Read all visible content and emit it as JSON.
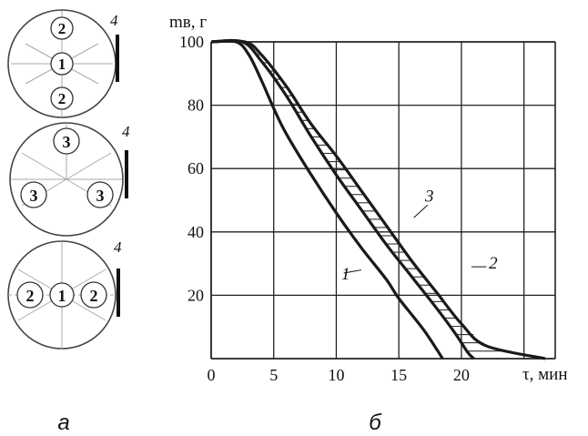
{
  "panel_labels": {
    "left": "а",
    "right": "б"
  },
  "diagrams": [
    {
      "circles": [
        "2",
        "1",
        "2"
      ],
      "marker": "4"
    },
    {
      "circles": [
        "3",
        "3",
        "3"
      ],
      "marker": "4"
    },
    {
      "circles": [
        "2",
        "1",
        "2"
      ],
      "marker": "4"
    }
  ],
  "chart_data": {
    "type": "line",
    "ylabel": "mв, г",
    "xlabel": "τ, мин",
    "x_ticks": [
      "0",
      "5",
      "10",
      "15",
      "20"
    ],
    "y_ticks": [
      "100",
      "80",
      "60",
      "40",
      "20"
    ],
    "xlim": [
      0,
      27.5
    ],
    "ylim": [
      0,
      100
    ],
    "grid": true,
    "series": [
      {
        "name": "1",
        "points": [
          [
            0,
            100
          ],
          [
            2,
            100
          ],
          [
            3,
            96
          ],
          [
            4,
            88
          ],
          [
            5,
            79
          ],
          [
            6,
            71
          ],
          [
            8,
            58
          ],
          [
            10,
            46
          ],
          [
            12,
            35
          ],
          [
            14,
            25
          ],
          [
            15,
            19
          ],
          [
            17,
            9
          ],
          [
            18.5,
            0
          ]
        ]
      },
      {
        "name": "2",
        "points": [
          [
            0,
            100
          ],
          [
            2.7,
            100
          ],
          [
            4,
            96
          ],
          [
            6,
            86
          ],
          [
            8,
            74
          ],
          [
            10,
            64
          ],
          [
            12,
            53
          ],
          [
            14,
            42
          ],
          [
            16,
            31
          ],
          [
            18,
            21
          ],
          [
            20,
            11
          ],
          [
            22,
            4
          ],
          [
            26.7,
            0
          ]
        ]
      },
      {
        "name": "3",
        "points": [
          [
            0,
            100
          ],
          [
            2.5,
            100
          ],
          [
            4,
            94
          ],
          [
            6,
            83
          ],
          [
            8,
            70
          ],
          [
            10,
            58
          ],
          [
            12,
            47
          ],
          [
            14,
            36
          ],
          [
            16,
            26
          ],
          [
            18,
            16
          ],
          [
            19.5,
            8
          ],
          [
            20.5,
            2
          ],
          [
            21,
            0
          ]
        ]
      }
    ],
    "annotations": [
      "1",
      "2",
      "3"
    ]
  }
}
